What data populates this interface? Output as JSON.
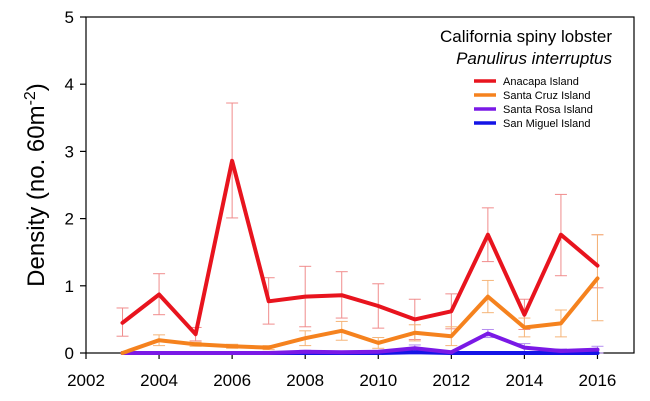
{
  "chart_data": {
    "type": "line",
    "title": "California spiny lobster",
    "subtitle": "Panulirus interruptus",
    "xlabel": "",
    "ylabel": "Density (no. 60m",
    "ylabel_sup": "-2",
    "ylabel_close": ")",
    "xlim": [
      2002,
      2017
    ],
    "ylim": [
      0,
      5
    ],
    "xticks": [
      2002,
      2004,
      2006,
      2008,
      2010,
      2012,
      2014,
      2016
    ],
    "yticks": [
      0,
      1,
      2,
      3,
      4,
      5
    ],
    "legend_position": "top-right",
    "grid": false,
    "x": [
      2003,
      2004,
      2005,
      2006,
      2007,
      2008,
      2009,
      2010,
      2011,
      2012,
      2013,
      2014,
      2015,
      2016
    ],
    "series": [
      {
        "name": "Anacapa Island",
        "color": "#e8141e",
        "error_color": "#f08c8c",
        "values": [
          0.45,
          0.87,
          0.28,
          2.86,
          0.77,
          0.84,
          0.86,
          0.7,
          0.5,
          0.62,
          1.76,
          0.57,
          1.76,
          1.3
        ],
        "upper": [
          0.67,
          1.18,
          0.38,
          3.72,
          1.12,
          1.29,
          1.21,
          1.03,
          0.8,
          0.88,
          2.16,
          0.8,
          2.36,
          1.76
        ],
        "lower": [
          0.25,
          0.57,
          0.18,
          2.01,
          0.43,
          0.39,
          0.52,
          0.37,
          0.2,
          0.36,
          1.36,
          0.35,
          1.15,
          0.97
        ]
      },
      {
        "name": "Santa Cruz Island",
        "color": "#f5821e",
        "error_color": "#f5b478",
        "values": [
          0.0,
          0.19,
          0.13,
          0.1,
          0.08,
          0.22,
          0.33,
          0.15,
          0.3,
          0.25,
          0.84,
          0.38,
          0.44,
          1.11
        ],
        "upper": [
          0.0,
          0.27,
          0.16,
          0.13,
          0.11,
          0.33,
          0.47,
          0.23,
          0.42,
          0.39,
          1.08,
          0.52,
          0.64,
          1.76
        ],
        "lower": [
          0.0,
          0.11,
          0.1,
          0.07,
          0.05,
          0.11,
          0.19,
          0.07,
          0.18,
          0.11,
          0.6,
          0.24,
          0.24,
          0.48
        ]
      },
      {
        "name": "Santa Rosa Island",
        "color": "#7a19e6",
        "error_color": "#b48cf0",
        "values": [
          0.0,
          0.0,
          0.0,
          0.0,
          0.0,
          0.02,
          0.01,
          0.02,
          0.07,
          0.01,
          0.29,
          0.08,
          0.03,
          0.05
        ],
        "upper": [
          0.0,
          0.0,
          0.0,
          0.0,
          0.0,
          0.04,
          0.03,
          0.04,
          0.12,
          0.03,
          0.35,
          0.14,
          0.06,
          0.1
        ],
        "lower": [
          0.0,
          0.0,
          0.0,
          0.0,
          0.0,
          0.0,
          0.0,
          0.0,
          0.02,
          0.0,
          0.23,
          0.02,
          0.0,
          0.0
        ]
      },
      {
        "name": "San Miguel Island",
        "color": "#1414e6",
        "error_color": "#8c8cf0",
        "values": [
          0.0,
          0.0,
          0.0,
          0.0,
          0.0,
          0.0,
          0.0,
          0.0,
          0.01,
          0.0,
          0.0,
          0.0,
          0.0,
          0.0
        ],
        "upper": [
          0.0,
          0.0,
          0.0,
          0.0,
          0.0,
          0.0,
          0.0,
          0.0,
          0.02,
          0.0,
          0.0,
          0.0,
          0.0,
          0.0
        ],
        "lower": [
          0.0,
          0.0,
          0.0,
          0.0,
          0.0,
          0.0,
          0.0,
          0.0,
          0.0,
          0.0,
          0.0,
          0.0,
          0.0,
          0.0
        ]
      }
    ]
  }
}
